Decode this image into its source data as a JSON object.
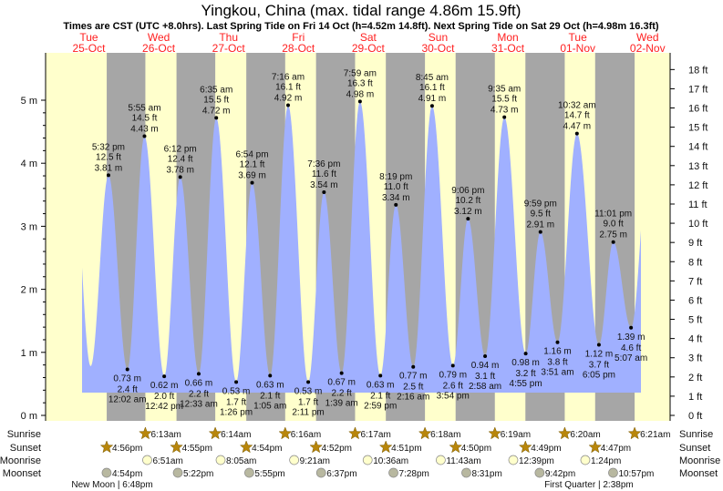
{
  "title": "Yingkou, China (max. tidal range 4.86m 15.9ft)",
  "subtitle": "Times are CST (UTC +8.0hrs). Last Spring Tide on Fri 14 Oct (h=4.52m 14.8ft). Next Spring Tide on Sat 29 Oct (h=4.98m 16.3ft)",
  "colors": {
    "day": "#ffffcc",
    "night": "#a6a6a6",
    "water": "#a0b0ff",
    "daylabel": "#ff2020",
    "sun": "#b8860b"
  },
  "days": [
    {
      "dow": "Tue",
      "date": "25-Oct"
    },
    {
      "dow": "Wed",
      "date": "26-Oct"
    },
    {
      "dow": "Thu",
      "date": "27-Oct"
    },
    {
      "dow": "Fri",
      "date": "28-Oct"
    },
    {
      "dow": "Sat",
      "date": "29-Oct"
    },
    {
      "dow": "Sun",
      "date": "30-Oct"
    },
    {
      "dow": "Mon",
      "date": "31-Oct"
    },
    {
      "dow": "Tue",
      "date": "01-Nov"
    },
    {
      "dow": "Wed",
      "date": "02-Nov"
    }
  ],
  "chart_data": {
    "type": "area",
    "title": "Yingkou, China (max. tidal range 4.86m 15.9ft)",
    "y_left": {
      "unit": "m",
      "range": [
        0,
        5.5
      ],
      "ticks": [
        "0 m",
        "1 m",
        "2 m",
        "3 m",
        "4 m",
        "5 m"
      ]
    },
    "y_right": {
      "unit": "ft",
      "ticks": [
        "0 ft",
        "1 ft",
        "2 ft",
        "3 ft",
        "4 ft",
        "5 ft",
        "6 ft",
        "7 ft",
        "8 ft",
        "9 ft",
        "10 ft",
        "11 ft",
        "12 ft",
        "13 ft",
        "14 ft",
        "15 ft",
        "16 ft",
        "17 ft",
        "18 ft"
      ]
    },
    "unlabeled_points": [
      {
        "day": 0,
        "time": "5:10am",
        "m": 4.2
      },
      {
        "day": 0,
        "time": "11:25am",
        "m": 0.78
      },
      {
        "day": 8,
        "time": "11:40am",
        "m": 4.3
      }
    ],
    "tides": [
      {
        "type": "high",
        "day": 0,
        "time": "5:32 pm",
        "ft": "12.5 ft",
        "m": 3.81,
        "m_label": "3.81 m"
      },
      {
        "type": "low",
        "day": 1,
        "time": "12:02 am",
        "ft": "2.4 ft",
        "m": 0.73,
        "m_label": "0.73 m"
      },
      {
        "type": "high",
        "day": 1,
        "time": "5:55 am",
        "ft": "14.5 ft",
        "m": 4.43,
        "m_label": "4.43 m"
      },
      {
        "type": "low",
        "day": 1,
        "time": "12:42 pm",
        "ft": "2.0 ft",
        "m": 0.62,
        "m_label": "0.62 m"
      },
      {
        "type": "high",
        "day": 1,
        "time": "6:12 pm",
        "ft": "12.4 ft",
        "m": 3.78,
        "m_label": "3.78 m"
      },
      {
        "type": "low",
        "day": 2,
        "time": "12:33 am",
        "ft": "2.2 ft",
        "m": 0.66,
        "m_label": "0.66 m"
      },
      {
        "type": "high",
        "day": 2,
        "time": "6:35 am",
        "ft": "15.5 ft",
        "m": 4.72,
        "m_label": "4.72 m"
      },
      {
        "type": "low",
        "day": 2,
        "time": "1:26 pm",
        "ft": "1.7 ft",
        "m": 0.53,
        "m_label": "0.53 m"
      },
      {
        "type": "high",
        "day": 2,
        "time": "6:54 pm",
        "ft": "12.1 ft",
        "m": 3.69,
        "m_label": "3.69 m"
      },
      {
        "type": "low",
        "day": 3,
        "time": "1:05 am",
        "ft": "2.1 ft",
        "m": 0.63,
        "m_label": "0.63 m"
      },
      {
        "type": "high",
        "day": 3,
        "time": "7:16 am",
        "ft": "16.1 ft",
        "m": 4.92,
        "m_label": "4.92 m"
      },
      {
        "type": "low",
        "day": 3,
        "time": "2:11 pm",
        "ft": "1.7 ft",
        "m": 0.53,
        "m_label": "0.53 m"
      },
      {
        "type": "high",
        "day": 3,
        "time": "7:36 pm",
        "ft": "11.6 ft",
        "m": 3.54,
        "m_label": "3.54 m"
      },
      {
        "type": "low",
        "day": 4,
        "time": "1:39 am",
        "ft": "2.2 ft",
        "m": 0.67,
        "m_label": "0.67 m"
      },
      {
        "type": "high",
        "day": 4,
        "time": "7:59 am",
        "ft": "16.3 ft",
        "m": 4.98,
        "m_label": "4.98 m"
      },
      {
        "type": "low",
        "day": 4,
        "time": "2:59 pm",
        "ft": "2.1 ft",
        "m": 0.63,
        "m_label": "0.63 m"
      },
      {
        "type": "high",
        "day": 4,
        "time": "8:19 pm",
        "ft": "11.0 ft",
        "m": 3.34,
        "m_label": "3.34 m"
      },
      {
        "type": "low",
        "day": 5,
        "time": "2:16 am",
        "ft": "2.5 ft",
        "m": 0.77,
        "m_label": "0.77 m"
      },
      {
        "type": "high",
        "day": 5,
        "time": "8:45 am",
        "ft": "16.1 ft",
        "m": 4.91,
        "m_label": "4.91 m"
      },
      {
        "type": "low",
        "day": 5,
        "time": "3:54 pm",
        "ft": "2.6 ft",
        "m": 0.79,
        "m_label": "0.79 m"
      },
      {
        "type": "high",
        "day": 5,
        "time": "9:06 pm",
        "ft": "10.2 ft",
        "m": 3.12,
        "m_label": "3.12 m"
      },
      {
        "type": "low",
        "day": 6,
        "time": "2:58 am",
        "ft": "3.1 ft",
        "m": 0.94,
        "m_label": "0.94 m"
      },
      {
        "type": "high",
        "day": 6,
        "time": "9:35 am",
        "ft": "15.5 ft",
        "m": 4.73,
        "m_label": "4.73 m"
      },
      {
        "type": "low",
        "day": 6,
        "time": "4:55 pm",
        "ft": "3.2 ft",
        "m": 0.98,
        "m_label": "0.98 m"
      },
      {
        "type": "high",
        "day": 6,
        "time": "9:59 pm",
        "ft": "9.5 ft",
        "m": 2.91,
        "m_label": "2.91 m"
      },
      {
        "type": "low",
        "day": 7,
        "time": "3:51 am",
        "ft": "3.8 ft",
        "m": 1.16,
        "m_label": "1.16 m"
      },
      {
        "type": "high",
        "day": 7,
        "time": "10:32 am",
        "ft": "14.7 ft",
        "m": 4.47,
        "m_label": "4.47 m"
      },
      {
        "type": "low",
        "day": 7,
        "time": "6:05 pm",
        "ft": "3.7 ft",
        "m": 1.12,
        "m_label": "1.12 m"
      },
      {
        "type": "high",
        "day": 7,
        "time": "11:01 pm",
        "ft": "9.0 ft",
        "m": 2.75,
        "m_label": "2.75 m"
      },
      {
        "type": "low",
        "day": 8,
        "time": "5:07 am",
        "ft": "4.6 ft",
        "m": 1.39,
        "m_label": "1.39 m"
      }
    ]
  },
  "rows": {
    "sunrise": {
      "label": "Sunrise",
      "events": [
        {
          "day": 1,
          "time": "6:13am"
        },
        {
          "day": 2,
          "time": "6:14am"
        },
        {
          "day": 3,
          "time": "6:16am"
        },
        {
          "day": 4,
          "time": "6:17am"
        },
        {
          "day": 5,
          "time": "6:18am"
        },
        {
          "day": 6,
          "time": "6:19am"
        },
        {
          "day": 7,
          "time": "6:20am"
        },
        {
          "day": 8,
          "time": "6:21am"
        }
      ]
    },
    "sunset": {
      "label": "Sunset",
      "events": [
        {
          "day": 0,
          "time": "4:56pm"
        },
        {
          "day": 1,
          "time": "4:55pm"
        },
        {
          "day": 2,
          "time": "4:54pm"
        },
        {
          "day": 3,
          "time": "4:52pm"
        },
        {
          "day": 4,
          "time": "4:51pm"
        },
        {
          "day": 5,
          "time": "4:50pm"
        },
        {
          "day": 6,
          "time": "4:49pm"
        },
        {
          "day": 7,
          "time": "4:47pm"
        }
      ]
    },
    "moonrise": {
      "label": "Moonrise",
      "events": [
        {
          "day": 1,
          "time": "6:51am"
        },
        {
          "day": 2,
          "time": "8:05am"
        },
        {
          "day": 3,
          "time": "9:21am"
        },
        {
          "day": 4,
          "time": "10:36am"
        },
        {
          "day": 5,
          "time": "11:43am"
        },
        {
          "day": 6,
          "time": "12:39pm"
        },
        {
          "day": 7,
          "time": "1:24pm"
        }
      ]
    },
    "moonset": {
      "label": "Moonset",
      "events": [
        {
          "day": 0,
          "time": "4:54pm"
        },
        {
          "day": 1,
          "time": "5:22pm"
        },
        {
          "day": 2,
          "time": "5:55pm"
        },
        {
          "day": 3,
          "time": "6:37pm"
        },
        {
          "day": 4,
          "time": "7:28pm"
        },
        {
          "day": 5,
          "time": "8:31pm"
        },
        {
          "day": 6,
          "time": "9:42pm"
        },
        {
          "day": 7,
          "time": "10:57pm"
        }
      ]
    }
  },
  "moon_phases": [
    {
      "day": 0,
      "time": "6:48pm",
      "text": "New Moon | 6:48pm"
    },
    {
      "day": 7,
      "time": "2:38pm",
      "text": "First Quarter | 2:38pm"
    }
  ]
}
